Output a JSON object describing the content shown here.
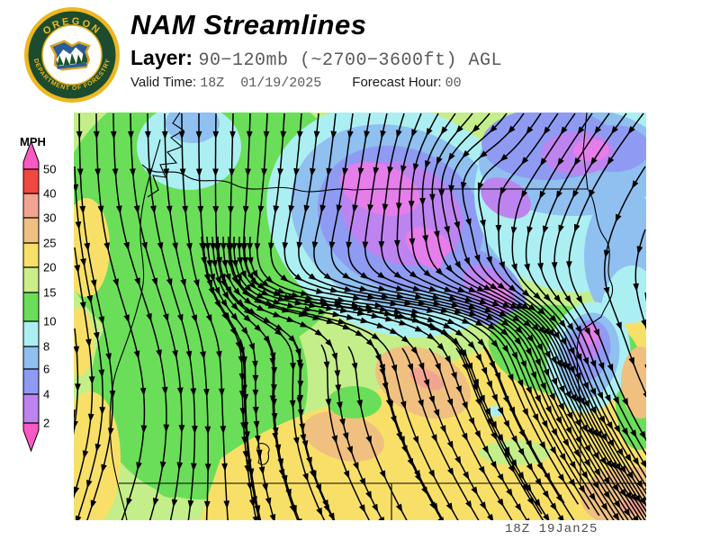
{
  "header": {
    "title": "NAM Streamlines",
    "layer_label": "Layer:",
    "layer_value": "90−120mb (~2700−3600ft) AGL",
    "valid_time_label": "Valid Time:",
    "valid_time_value": "18Z  01/19/2025",
    "forecast_hour_label": "Forecast Hour:",
    "forecast_hour_value": "00"
  },
  "logo": {
    "arc_top": "OREGON",
    "arc_bottom": "DEPARTMENT OF FORESTRY",
    "ring_color": "#1c4c2d",
    "gold_color": "#efb71f"
  },
  "legend": {
    "units": "MPH",
    "ticks": [
      50,
      40,
      30,
      25,
      20,
      15,
      10,
      8,
      6,
      4,
      2
    ],
    "band_colors": [
      "#F04840",
      "#F2A492",
      "#F0C080",
      "#F8E068",
      "#CCEE88",
      "#6ADE58",
      "#ACEFF2",
      "#8FC0F0",
      "#8F9BF2",
      "#BD84F0"
    ],
    "cap_color": "#F859C2"
  },
  "colors": {
    "light_green": "#C4EE8A",
    "green": "#6ADE58",
    "yellow": "#F8E068",
    "orange": "#F0C080",
    "salmon": "#F2A492",
    "cyan": "#ACEFF2",
    "blue": "#8FC0F0",
    "periwinkle": "#8F9BF2",
    "purple": "#BD84F0",
    "magenta": "#E57EEA",
    "streamline": "#000000"
  },
  "map": {
    "timestamp": "18Z 19Jan25"
  },
  "chart_data": {
    "type": "heatmap",
    "title": "NAM Streamlines",
    "layer": "90−120mb (~2700−3600ft) AGL",
    "valid_time": "18Z 01/19/2025",
    "forecast_hour": "00",
    "legend_units": "MPH",
    "legend_levels": [
      50,
      40,
      30,
      25,
      20,
      15,
      10,
      8,
      6,
      4,
      2
    ],
    "annotations": [
      "18Z 19Jan25"
    ],
    "flow_description": "Streamlines flow generally north to south; convergence with very light winds over the north-central area; flow fans out south of a dense confluence column west of center and turns southeast over the eastern half.",
    "regions": [
      {
        "area": "west / northwest",
        "wind_mph": "10-20"
      },
      {
        "area": "north-central convergence zone",
        "wind_mph": "<2-8"
      },
      {
        "area": "northeast",
        "wind_mph": "2-10"
      },
      {
        "area": "central to southeast",
        "wind_mph": "20-30"
      },
      {
        "area": "east-central dip",
        "wind_mph": "<2-8"
      },
      {
        "area": "coastal strip",
        "wind_mph": "15-25"
      }
    ]
  }
}
